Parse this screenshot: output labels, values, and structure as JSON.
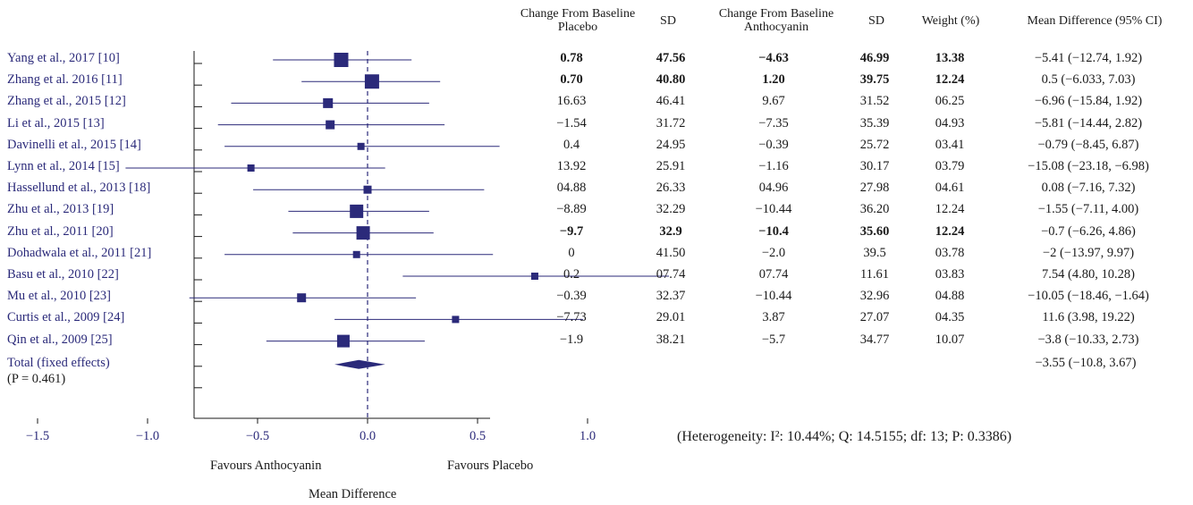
{
  "chart_data": {
    "type": "forest",
    "columns": {
      "placebo_change": "Change From Baseline Placebo",
      "placebo_sd": "SD",
      "antho_change": "Change From Baseline Anthocyanin",
      "antho_sd": "SD",
      "weight": "Weight (%)",
      "md": "Mean Difference (95% CI)"
    },
    "studies": [
      {
        "label": "Yang et al., 2017 [10]",
        "placebo_change": "0.78",
        "placebo_sd": "47.56",
        "antho_change": "−4.63",
        "antho_sd": "46.99",
        "weight": "13.38",
        "md_text": "−5.41 (−12.74, 1.92)",
        "bold": true,
        "x": -0.12,
        "lo": -0.43,
        "hi": 0.2,
        "size": 16
      },
      {
        "label": "Zhang et al. 2016 [11]",
        "placebo_change": "0.70",
        "placebo_sd": "40.80",
        "antho_change": "1.20",
        "antho_sd": "39.75",
        "weight": "12.24",
        "md_text": "0.5 (−6.033, 7.03)",
        "bold": true,
        "x": 0.02,
        "lo": -0.3,
        "hi": 0.33,
        "size": 16
      },
      {
        "label": "Zhang et al., 2015 [12]",
        "placebo_change": "16.63",
        "placebo_sd": "46.41",
        "antho_change": "9.67",
        "antho_sd": "31.52",
        "weight": "06.25",
        "md_text": "−6.96 (−15.84, 1.92)",
        "bold": false,
        "x": -0.18,
        "lo": -0.62,
        "hi": 0.28,
        "size": 11
      },
      {
        "label": "Li et al., 2015 [13]",
        "placebo_change": "−1.54",
        "placebo_sd": "31.72",
        "antho_change": "−7.35",
        "antho_sd": "35.39",
        "weight": "04.93",
        "md_text": "−5.81 (−14.44, 2.82)",
        "bold": false,
        "x": -0.17,
        "lo": -0.68,
        "hi": 0.35,
        "size": 10
      },
      {
        "label": "Davinelli et al., 2015 [14]",
        "placebo_change": "0.4",
        "placebo_sd": "24.95",
        "antho_change": "−0.39",
        "antho_sd": "25.72",
        "weight": "03.41",
        "md_text": "−0.79 (−8.45, 6.87)",
        "bold": false,
        "x": -0.03,
        "lo": -0.65,
        "hi": 0.6,
        "size": 8
      },
      {
        "label": "Lynn et al., 2014 [15]",
        "placebo_change": "13.92",
        "placebo_sd": "25.91",
        "antho_change": "−1.16",
        "antho_sd": "30.17",
        "weight": "03.79",
        "md_text": "−15.08 (−23.18, −6.98)",
        "bold": false,
        "x": -0.53,
        "lo": -1.1,
        "hi": 0.08,
        "size": 8
      },
      {
        "label": "Hassellund et al., 2013 [18]",
        "placebo_change": "04.88",
        "placebo_sd": "26.33",
        "antho_change": "04.96",
        "antho_sd": "27.98",
        "weight": "04.61",
        "md_text": "0.08 (−7.16, 7.32)",
        "bold": false,
        "x": 0.0,
        "lo": -0.52,
        "hi": 0.53,
        "size": 9
      },
      {
        "label": "Zhu et al., 2013 [19]",
        "placebo_change": "−8.89",
        "placebo_sd": "32.29",
        "antho_change": "−10.44",
        "antho_sd": "36.20",
        "weight": "12.24",
        "md_text": "−1.55 (−7.11, 4.00)",
        "bold": false,
        "x": -0.05,
        "lo": -0.36,
        "hi": 0.28,
        "size": 15
      },
      {
        "label": "Zhu et al., 2011 [20]",
        "placebo_change": "−9.7",
        "placebo_sd": "32.9",
        "antho_change": "−10.4",
        "antho_sd": "35.60",
        "weight": "12.24",
        "md_text": "−0.7 (−6.26, 4.86)",
        "bold": true,
        "x": -0.02,
        "lo": -0.34,
        "hi": 0.3,
        "size": 15
      },
      {
        "label": "Dohadwala et al., 2011 [21]",
        "placebo_change": "0",
        "placebo_sd": "41.50",
        "antho_change": "−2.0",
        "antho_sd": "39.5",
        "weight": "03.78",
        "md_text": "−2 (−13.97, 9.97)",
        "bold": false,
        "x": -0.05,
        "lo": -0.65,
        "hi": 0.57,
        "size": 8
      },
      {
        "label": "Basu et al., 2010 [22]",
        "placebo_change": "0.2",
        "placebo_sd": "07.74",
        "antho_change": "07.74",
        "antho_sd": "11.61",
        "weight": "03.83",
        "md_text": "7.54 (4.80, 10.28)",
        "bold": false,
        "x": 0.76,
        "lo": 0.16,
        "hi": 1.37,
        "size": 8
      },
      {
        "label": "Mu et al., 2010 [23]",
        "placebo_change": "−0.39",
        "placebo_sd": "32.37",
        "antho_change": "−10.44",
        "antho_sd": "32.96",
        "weight": "04.88",
        "md_text": "−10.05 (−18.46, −1.64)",
        "bold": false,
        "x": -0.3,
        "lo": -0.81,
        "hi": 0.22,
        "size": 10
      },
      {
        "label": "Curtis et al., 2009 [24]",
        "placebo_change": "−7.73",
        "placebo_sd": "29.01",
        "antho_change": "3.87",
        "antho_sd": "27.07",
        "weight": "04.35",
        "md_text": "11.6 (3.98, 19.22)",
        "bold": false,
        "x": 0.4,
        "lo": -0.15,
        "hi": 0.98,
        "size": 8
      },
      {
        "label": "Qin et al., 2009 [25]",
        "placebo_change": "−1.9",
        "placebo_sd": "38.21",
        "antho_change": "−5.7",
        "antho_sd": "34.77",
        "weight": "10.07",
        "md_text": "−3.8 (−10.33, 2.73)",
        "bold": false,
        "x": -0.11,
        "lo": -0.46,
        "hi": 0.26,
        "size": 14
      }
    ],
    "total": {
      "label": "Total (fixed effects)",
      "label2": "(P = 0.461)",
      "md_text": "−3.55 (−10.8, 3.67)",
      "x": -0.04,
      "lo": -0.15,
      "hi": 0.08
    },
    "x_ticks": [
      -1.5,
      -1.0,
      -0.5,
      0.0,
      0.5,
      1.0
    ],
    "x_tick_labels": [
      "−1.5",
      "−1.0",
      "−0.5",
      "0.0",
      "0.5",
      "1.0"
    ],
    "xlim": [
      -1.5,
      1.5
    ],
    "xlabel": "Mean Difference",
    "favours_left": "Favours Anthocyanin",
    "favours_right": "Favours Placebo",
    "heterogeneity": "(Heterogeneity: I²: 10.44%; Q: 14.5155; df: 13; P: 0.3386)",
    "colors": {
      "marker": "#2b2a7a",
      "axis": "#1a1a1a"
    }
  }
}
